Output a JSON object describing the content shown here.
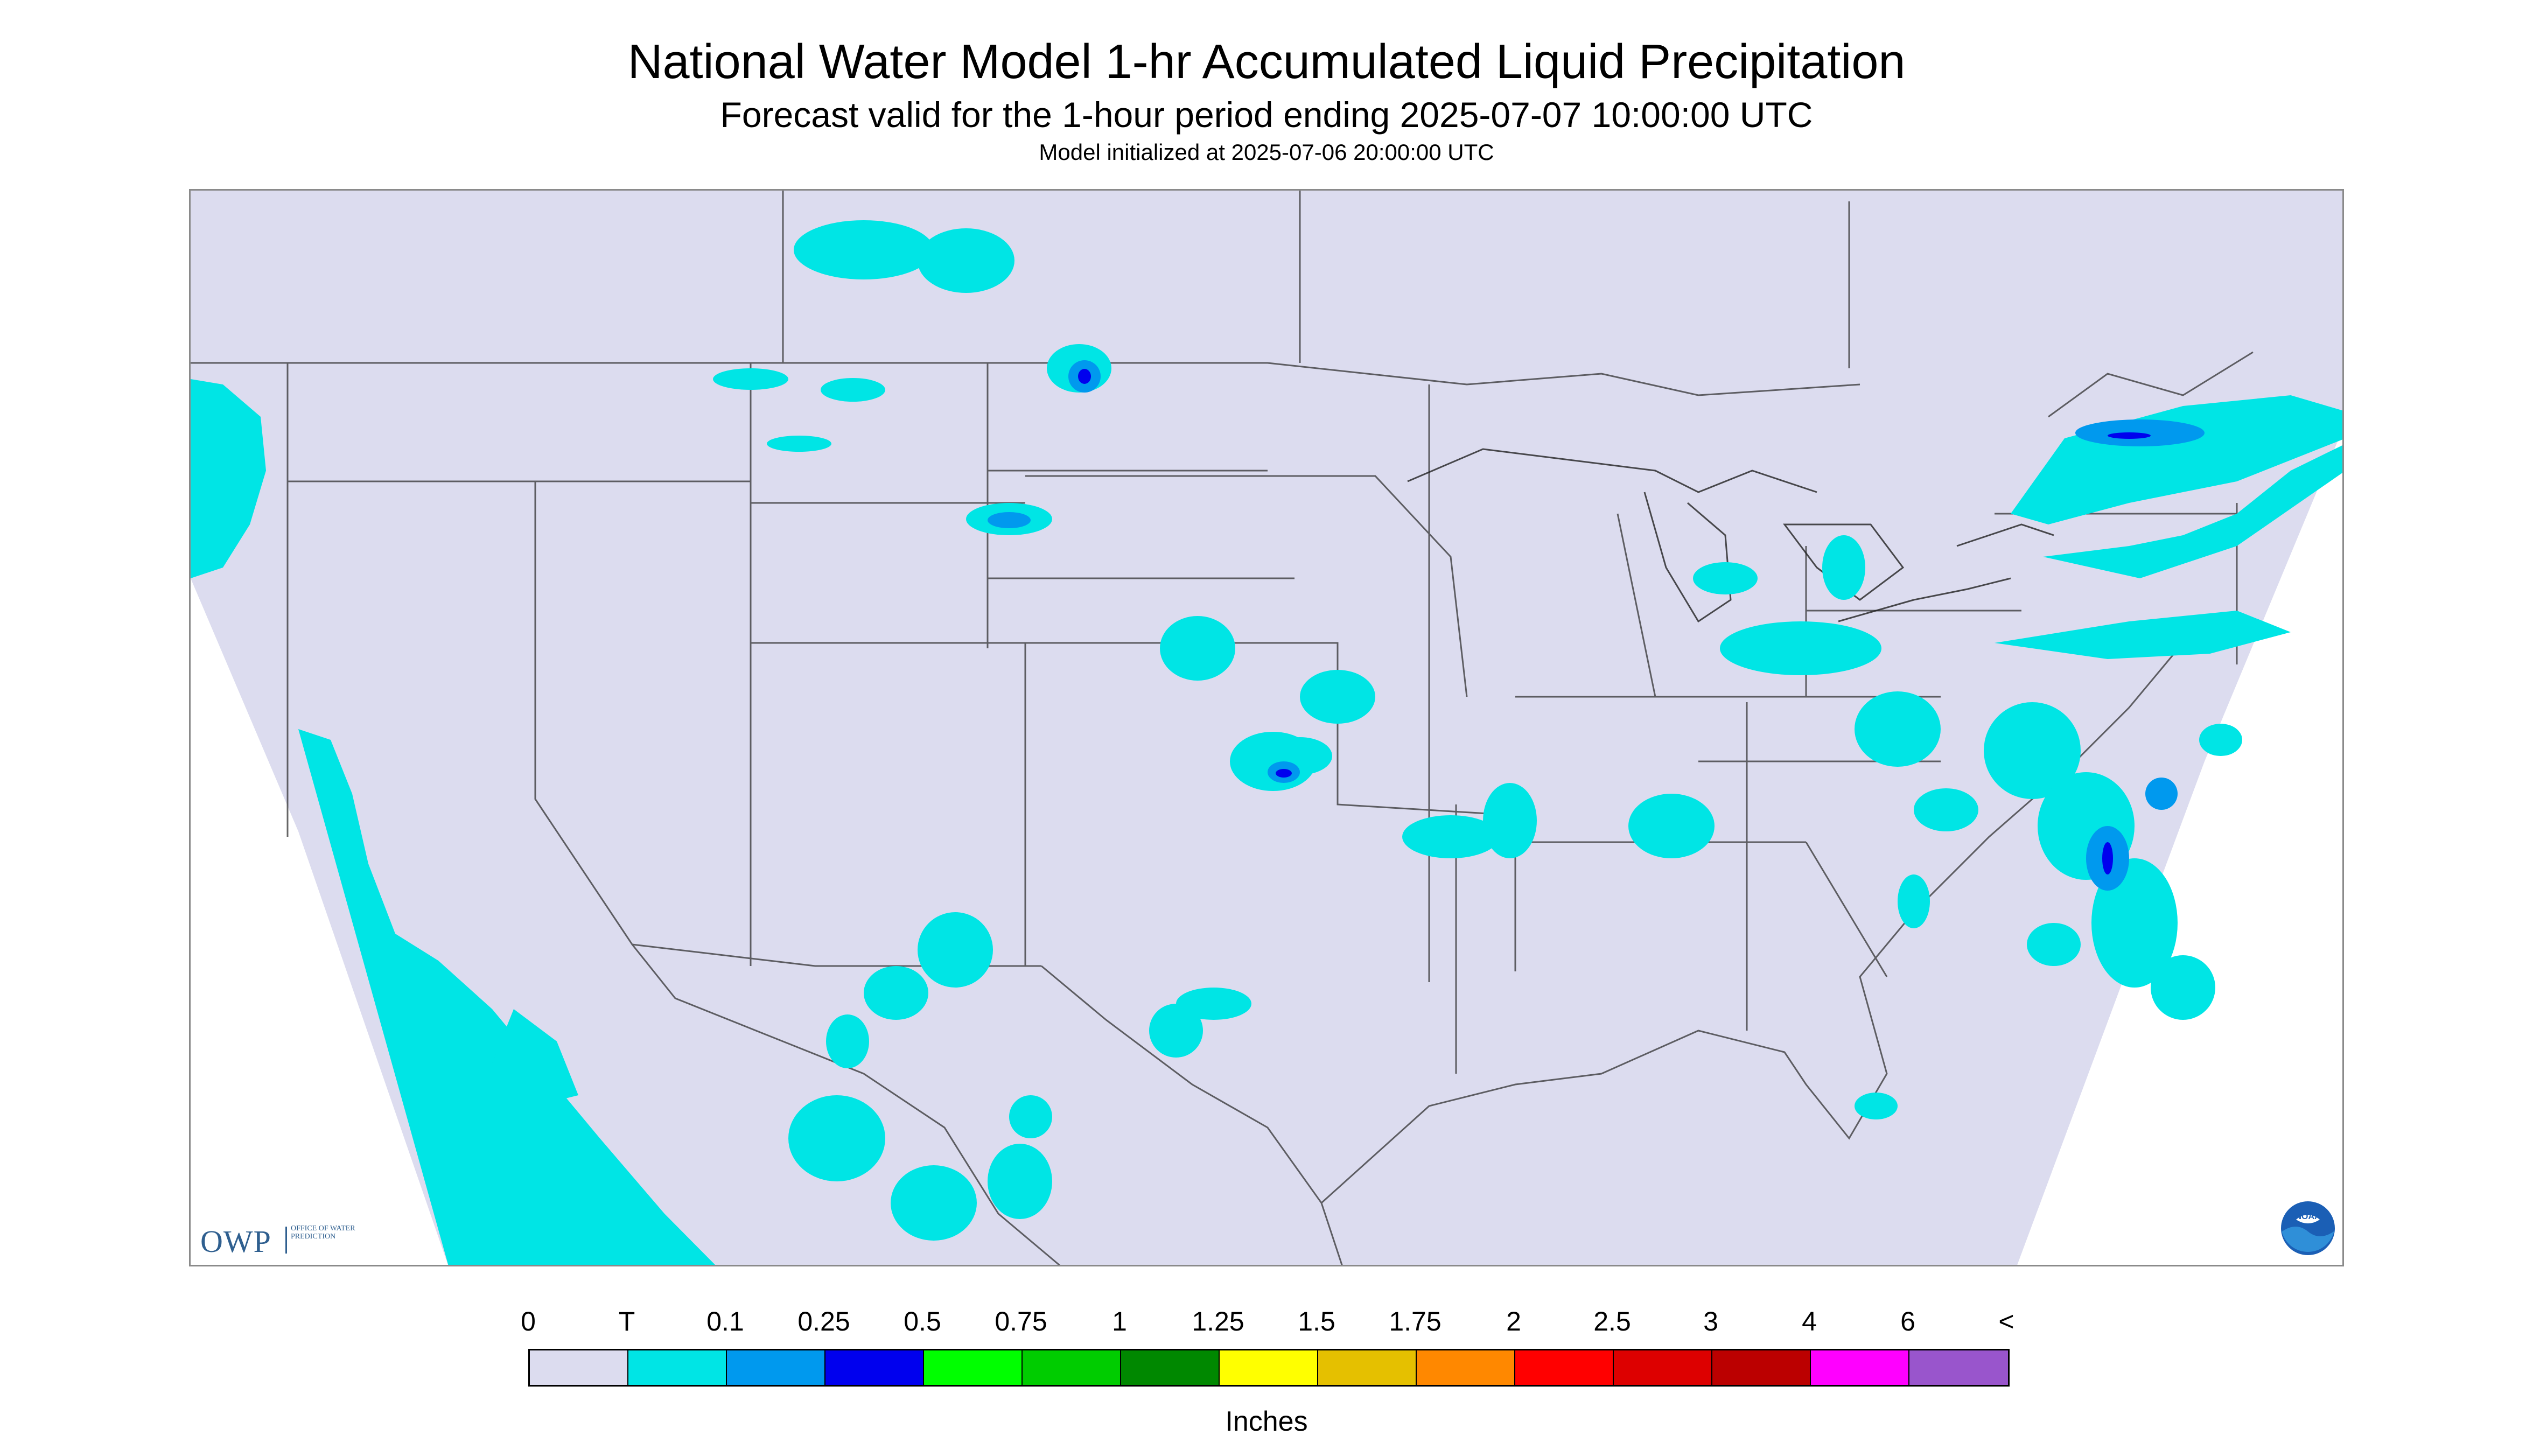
{
  "header": {
    "title": "National Water Model 1-hr Accumulated Liquid Precipitation",
    "subtitle": "Forecast valid for the 1-hour period ending 2025-07-07 10:00:00 UTC",
    "init": "Model initialized at 2025-07-06 20:00:00 UTC"
  },
  "logos": {
    "owp_word": "OWP",
    "owp_sub": "Office of Water Prediction",
    "noaa_label": "NOAA"
  },
  "legend": {
    "labels": [
      "0",
      "T",
      "0.1",
      "0.25",
      "0.5",
      "0.75",
      "1",
      "1.25",
      "1.5",
      "1.75",
      "2",
      "2.5",
      "3",
      "4",
      "6",
      "<"
    ],
    "colors": [
      "#dcdcef",
      "#00e5e5",
      "#0099ee",
      "#0000ee",
      "#00ff00",
      "#00cc00",
      "#008800",
      "#ffff00",
      "#e5c000",
      "#ff8800",
      "#ff0000",
      "#dd0000",
      "#bb0000",
      "#ff00ff",
      "#9955cc"
    ],
    "units": "Inches"
  },
  "map": {
    "background_color": "#dcdcef",
    "trace_color": "#00e5e5",
    "light_color": "#0099ee",
    "moderate_color": "#0000ee"
  }
}
